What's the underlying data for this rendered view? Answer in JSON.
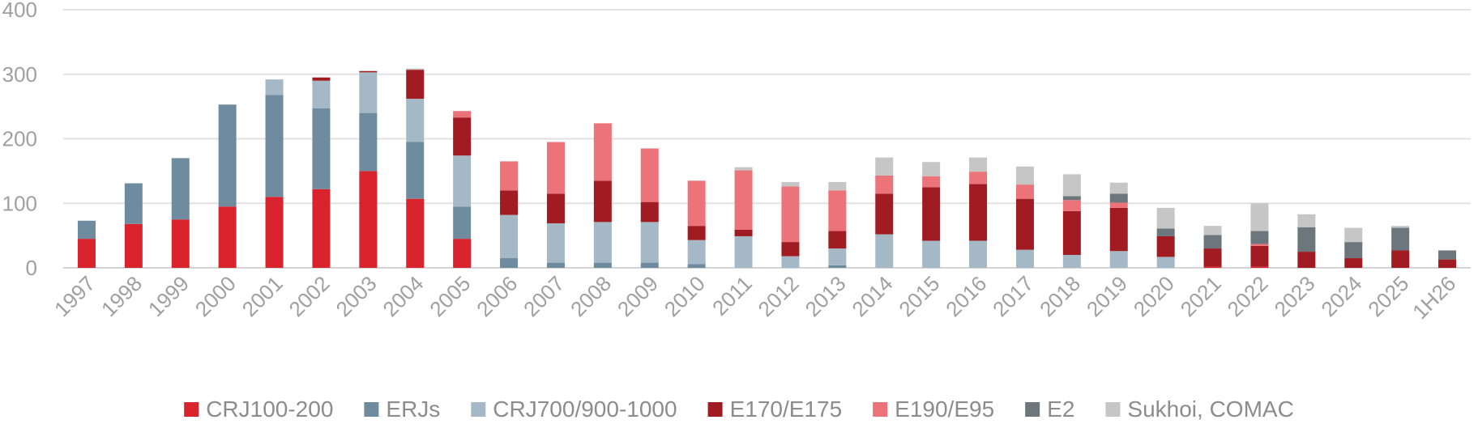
{
  "chart_data": {
    "type": "bar",
    "stacked": true,
    "categories": [
      "1997",
      "1998",
      "1999",
      "2000",
      "2001",
      "2002",
      "2003",
      "2004",
      "2005",
      "2006",
      "2007",
      "2008",
      "2009",
      "2010",
      "2011",
      "2012",
      "2013",
      "2014",
      "2015",
      "2016",
      "2017",
      "2018",
      "2019",
      "2020",
      "2021",
      "2022",
      "2023",
      "2024",
      "2025",
      "1H26"
    ],
    "series": [
      {
        "name": "CRJ100-200",
        "color": "#d9232d",
        "values": [
          45,
          68,
          75,
          95,
          110,
          122,
          150,
          107,
          45,
          0,
          0,
          0,
          0,
          0,
          0,
          0,
          0,
          0,
          0,
          0,
          0,
          0,
          0,
          0,
          2,
          2,
          0,
          0,
          0,
          0
        ]
      },
      {
        "name": "ERJs",
        "color": "#6e8ba0",
        "values": [
          28,
          63,
          95,
          158,
          158,
          125,
          90,
          88,
          50,
          15,
          8,
          8,
          8,
          6,
          0,
          0,
          4,
          0,
          0,
          0,
          0,
          0,
          0,
          0,
          0,
          0,
          0,
          0,
          0,
          0
        ]
      },
      {
        "name": "CRJ700/900-1000",
        "color": "#a4b8c6",
        "values": [
          0,
          0,
          0,
          0,
          24,
          43,
          63,
          67,
          79,
          67,
          61,
          63,
          63,
          37,
          49,
          18,
          26,
          52,
          42,
          42,
          28,
          20,
          26,
          17,
          0,
          0,
          0,
          0,
          0,
          0
        ]
      },
      {
        "name": "E170/E175",
        "color": "#a01c22",
        "values": [
          0,
          0,
          0,
          0,
          0,
          5,
          2,
          45,
          59,
          38,
          46,
          64,
          31,
          22,
          10,
          22,
          27,
          63,
          83,
          88,
          79,
          68,
          67,
          32,
          28,
          32,
          25,
          15,
          27,
          13
        ]
      },
      {
        "name": "E190/E95",
        "color": "#ec7379",
        "values": [
          0,
          0,
          0,
          0,
          0,
          0,
          0,
          0,
          10,
          45,
          80,
          89,
          83,
          70,
          92,
          86,
          63,
          28,
          17,
          19,
          22,
          17,
          8,
          0,
          0,
          3,
          0,
          0,
          0,
          0
        ]
      },
      {
        "name": "E2",
        "color": "#6b777d",
        "values": [
          0,
          0,
          0,
          0,
          0,
          0,
          0,
          0,
          0,
          0,
          0,
          0,
          0,
          0,
          0,
          0,
          0,
          0,
          0,
          0,
          0,
          6,
          14,
          12,
          21,
          20,
          38,
          25,
          35,
          14
        ]
      },
      {
        "name": "Sukhoi, COMAC",
        "color": "#c6c6c6",
        "values": [
          0,
          0,
          0,
          0,
          0,
          0,
          0,
          2,
          0,
          0,
          0,
          0,
          0,
          0,
          5,
          7,
          13,
          28,
          22,
          22,
          28,
          34,
          17,
          32,
          14,
          43,
          20,
          22,
          3,
          0
        ]
      }
    ],
    "title": "",
    "xlabel": "",
    "ylabel": "",
    "ylim": [
      0,
      400
    ],
    "yticks": [
      "0",
      "100",
      "200",
      "300",
      "400"
    ],
    "grid": true,
    "legend_position": "bottom"
  }
}
